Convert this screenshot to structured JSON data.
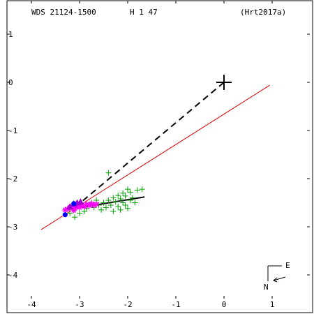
{
  "header": {
    "left": "WDS 21124-1500",
    "middle": "H 1  47",
    "right": "(Hrt2017a)"
  },
  "compass": {
    "east": "E",
    "north": "N"
  },
  "colors": {
    "fit_line": "#000000",
    "ref_line": "#dd0000",
    "obs_green": "#00a000",
    "obs_magenta": "#ff00ff",
    "obs_purple": "#a000d0",
    "obs_blue": "#0000ff"
  },
  "chart_data": {
    "type": "scatter",
    "xlim": [
      -4.3,
      1.8
    ],
    "ylim": [
      -4.8,
      1.6
    ],
    "x_ticks": [
      -4,
      -3,
      -2,
      -1,
      0,
      1
    ],
    "y_ticks": [
      1,
      0,
      -1,
      -2,
      -3,
      -4
    ],
    "grid": false,
    "primary": {
      "x": 0.0,
      "y": 0.0
    },
    "dashed_line": [
      [
        0.0,
        0.0
      ],
      [
        -3.1,
        -2.6
      ]
    ],
    "fit_line": [
      [
        -3.3,
        -2.65
      ],
      [
        -1.65,
        -2.38
      ]
    ],
    "reference_line": [
      [
        -3.8,
        -3.06
      ],
      [
        0.95,
        -0.06
      ]
    ],
    "series": [
      {
        "marker": "plus",
        "color": "#00a000",
        "points": [
          [
            -2.4,
            -1.88
          ],
          [
            -2.0,
            -2.22
          ],
          [
            -1.95,
            -2.28
          ],
          [
            -1.8,
            -2.24
          ],
          [
            -1.7,
            -2.22
          ],
          [
            -2.1,
            -2.3
          ],
          [
            -2.05,
            -2.36
          ],
          [
            -2.2,
            -2.35
          ],
          [
            -1.9,
            -2.4
          ],
          [
            -2.15,
            -2.42
          ],
          [
            -2.3,
            -2.4
          ],
          [
            -2.4,
            -2.45
          ],
          [
            -2.25,
            -2.48
          ],
          [
            -2.1,
            -2.5
          ],
          [
            -1.95,
            -2.45
          ],
          [
            -2.5,
            -2.5
          ],
          [
            -2.35,
            -2.55
          ],
          [
            -2.2,
            -2.58
          ],
          [
            -2.05,
            -2.55
          ],
          [
            -1.85,
            -2.5
          ],
          [
            -2.6,
            -2.55
          ],
          [
            -2.45,
            -2.6
          ],
          [
            -2.15,
            -2.65
          ],
          [
            -2.0,
            -2.62
          ],
          [
            -2.7,
            -2.6
          ],
          [
            -2.55,
            -2.65
          ],
          [
            -2.3,
            -2.68
          ],
          [
            -2.75,
            -2.5
          ],
          [
            -3.0,
            -2.72
          ],
          [
            -3.1,
            -2.8
          ],
          [
            -3.2,
            -2.72
          ],
          [
            -2.9,
            -2.68
          ],
          [
            -2.65,
            -2.45
          ],
          [
            -2.85,
            -2.62
          ]
        ]
      },
      {
        "marker": "asterisk",
        "color": "#ff00ff",
        "points": [
          [
            -3.25,
            -2.63
          ],
          [
            -3.2,
            -2.6
          ],
          [
            -3.15,
            -2.58
          ],
          [
            -3.1,
            -2.62
          ],
          [
            -3.05,
            -2.57
          ],
          [
            -3.0,
            -2.6
          ],
          [
            -2.95,
            -2.55
          ],
          [
            -2.9,
            -2.58
          ],
          [
            -2.85,
            -2.53
          ],
          [
            -2.8,
            -2.56
          ],
          [
            -2.75,
            -2.52
          ],
          [
            -2.7,
            -2.55
          ],
          [
            -3.3,
            -2.65
          ],
          [
            -2.65,
            -2.53
          ],
          [
            -3.12,
            -2.66
          ]
        ]
      },
      {
        "marker": "triangle",
        "color": "#a000d0",
        "points": [
          [
            -3.05,
            -2.5
          ],
          [
            -3.12,
            -2.52
          ],
          [
            -2.98,
            -2.48
          ],
          [
            -3.2,
            -2.58
          ]
        ]
      },
      {
        "marker": "circle",
        "color": "#0000ff",
        "points": [
          [
            -3.3,
            -2.75
          ],
          [
            -3.12,
            -2.52
          ]
        ]
      }
    ]
  }
}
